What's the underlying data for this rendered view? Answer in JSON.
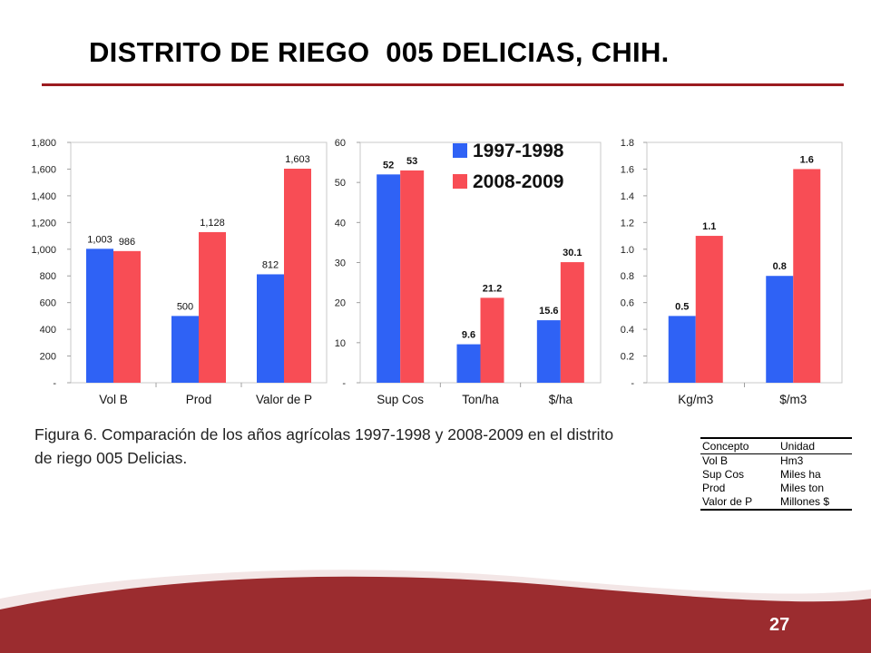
{
  "slide": {
    "title": "DISTRITO DE RIEGO  005 DELICIAS, CHIH.",
    "caption": "Figura 6. Comparación de los años agrícolas 1997-1998 y 2008-2009 en el distrito de riego 005 Delicias.",
    "page_number": "27",
    "colors": {
      "accent": "#9b1b1f",
      "series_1997": "#2f62f5",
      "series_2008": "#f84d55"
    }
  },
  "legend": [
    {
      "label": "1997-1998",
      "color": "#2f62f5"
    },
    {
      "label": "2008-2009",
      "color": "#f84d55"
    }
  ],
  "units_table": {
    "headers": [
      "Concepto",
      "Unidad"
    ],
    "rows": [
      [
        "Vol B",
        "Hm3"
      ],
      [
        "Sup Cos",
        "Miles ha"
      ],
      [
        "Prod",
        "Miles ton"
      ],
      [
        "Valor de P",
        "Millones $"
      ]
    ]
  },
  "chart_data": [
    {
      "type": "bar",
      "categories": [
        "Vol B",
        "Prod",
        "Valor de P"
      ],
      "series": [
        {
          "name": "1997-1998",
          "values": [
            1003,
            500,
            812
          ],
          "labels": [
            "1,003",
            "500",
            "812"
          ]
        },
        {
          "name": "2008-2009",
          "values": [
            986,
            1128,
            1603
          ],
          "labels": [
            "986",
            "1,128",
            "1,603"
          ]
        }
      ],
      "ylim": [
        0,
        1800
      ],
      "yticks": [
        "-",
        "200",
        "400",
        "600",
        "800",
        "1,000",
        "1,200",
        "1,400",
        "1,600",
        "1,800"
      ],
      "grid": false
    },
    {
      "type": "bar",
      "categories": [
        "Sup Cos",
        "Ton/ha",
        "$/ha"
      ],
      "series": [
        {
          "name": "1997-1998",
          "values": [
            52,
            9.6,
            15.6
          ],
          "labels": [
            "52",
            "9.6",
            "15.6"
          ]
        },
        {
          "name": "2008-2009",
          "values": [
            53,
            21.2,
            30.1
          ],
          "labels": [
            "53",
            "21.2",
            "30.1"
          ]
        }
      ],
      "ylim": [
        0,
        60
      ],
      "yticks": [
        "-",
        "10",
        "20",
        "30",
        "40",
        "50",
        "60"
      ],
      "legend": "top-right",
      "grid": false
    },
    {
      "type": "bar",
      "categories": [
        "Kg/m3",
        "$/m3"
      ],
      "series": [
        {
          "name": "1997-1998",
          "values": [
            0.5,
            0.8
          ],
          "labels": [
            "0.5",
            "0.8"
          ]
        },
        {
          "name": "2008-2009",
          "values": [
            1.1,
            1.6
          ],
          "labels": [
            "1.1",
            "1.6"
          ]
        }
      ],
      "ylim": [
        0,
        1.8
      ],
      "yticks": [
        "-",
        "0.2",
        "0.4",
        "0.6",
        "0.8",
        "1.0",
        "1.2",
        "1.4",
        "1.6",
        "1.8"
      ],
      "grid": false
    }
  ]
}
